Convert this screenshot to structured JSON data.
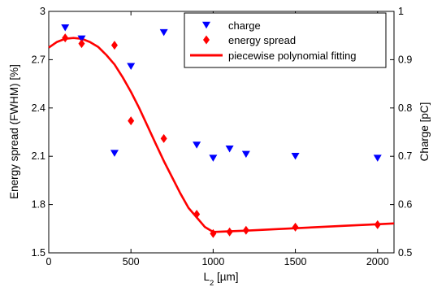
{
  "chart_data": {
    "type": "scatter",
    "title": "",
    "x": {
      "label_main": "L",
      "label_sub": "2",
      "label_unit": " [µm]",
      "range": [
        0,
        2100
      ],
      "ticks": [
        0,
        500,
        1000,
        1500,
        2000
      ]
    },
    "y_left": {
      "label": "Energy spread (FWHM) [%]",
      "range": [
        1.5,
        3.0
      ],
      "ticks": [
        "1.5",
        "1.8",
        "2.1",
        "2.4",
        "2.7",
        "3"
      ]
    },
    "y_right": {
      "label": "Charge [pC]",
      "range": [
        0.5,
        1.0
      ],
      "ticks": [
        "0.5",
        "0.6",
        "0.7",
        "0.8",
        "0.9",
        "1"
      ]
    },
    "legend": {
      "position": "top-right"
    },
    "series": [
      {
        "name": "charge",
        "axis": "right",
        "marker": "triangle-down",
        "color": "#0000ff",
        "points": [
          [
            100,
            0.966
          ],
          [
            200,
            0.943
          ],
          [
            400,
            0.706
          ],
          [
            500,
            0.886
          ],
          [
            700,
            0.956
          ],
          [
            900,
            0.723
          ],
          [
            1000,
            0.696
          ],
          [
            1100,
            0.715
          ],
          [
            1200,
            0.704
          ],
          [
            1500,
            0.7
          ],
          [
            2000,
            0.696
          ]
        ]
      },
      {
        "name": "energy spread",
        "axis": "left",
        "marker": "diamond",
        "color": "#ff0000",
        "points": [
          [
            100,
            2.835
          ],
          [
            200,
            2.8
          ],
          [
            400,
            2.79
          ],
          [
            500,
            2.32
          ],
          [
            700,
            2.21
          ],
          [
            900,
            1.74
          ],
          [
            1000,
            1.62
          ],
          [
            1100,
            1.63
          ],
          [
            1200,
            1.64
          ],
          [
            1500,
            1.66
          ],
          [
            2000,
            1.675
          ]
        ]
      },
      {
        "name": "piecewise polynomial fitting",
        "axis": "left",
        "type": "line",
        "color": "#ff0000",
        "points": [
          [
            0,
            2.775
          ],
          [
            50,
            2.81
          ],
          [
            100,
            2.83
          ],
          [
            150,
            2.835
          ],
          [
            200,
            2.83
          ],
          [
            250,
            2.81
          ],
          [
            300,
            2.78
          ],
          [
            350,
            2.73
          ],
          [
            400,
            2.67
          ],
          [
            450,
            2.59
          ],
          [
            500,
            2.5
          ],
          [
            550,
            2.4
          ],
          [
            600,
            2.29
          ],
          [
            650,
            2.18
          ],
          [
            700,
            2.07
          ],
          [
            750,
            1.97
          ],
          [
            800,
            1.87
          ],
          [
            850,
            1.78
          ],
          [
            900,
            1.72
          ],
          [
            950,
            1.66
          ],
          [
            1000,
            1.63
          ],
          [
            1200,
            1.638
          ],
          [
            1400,
            1.648
          ],
          [
            1600,
            1.658
          ],
          [
            1800,
            1.668
          ],
          [
            2000,
            1.678
          ],
          [
            2100,
            1.683
          ]
        ]
      }
    ]
  }
}
